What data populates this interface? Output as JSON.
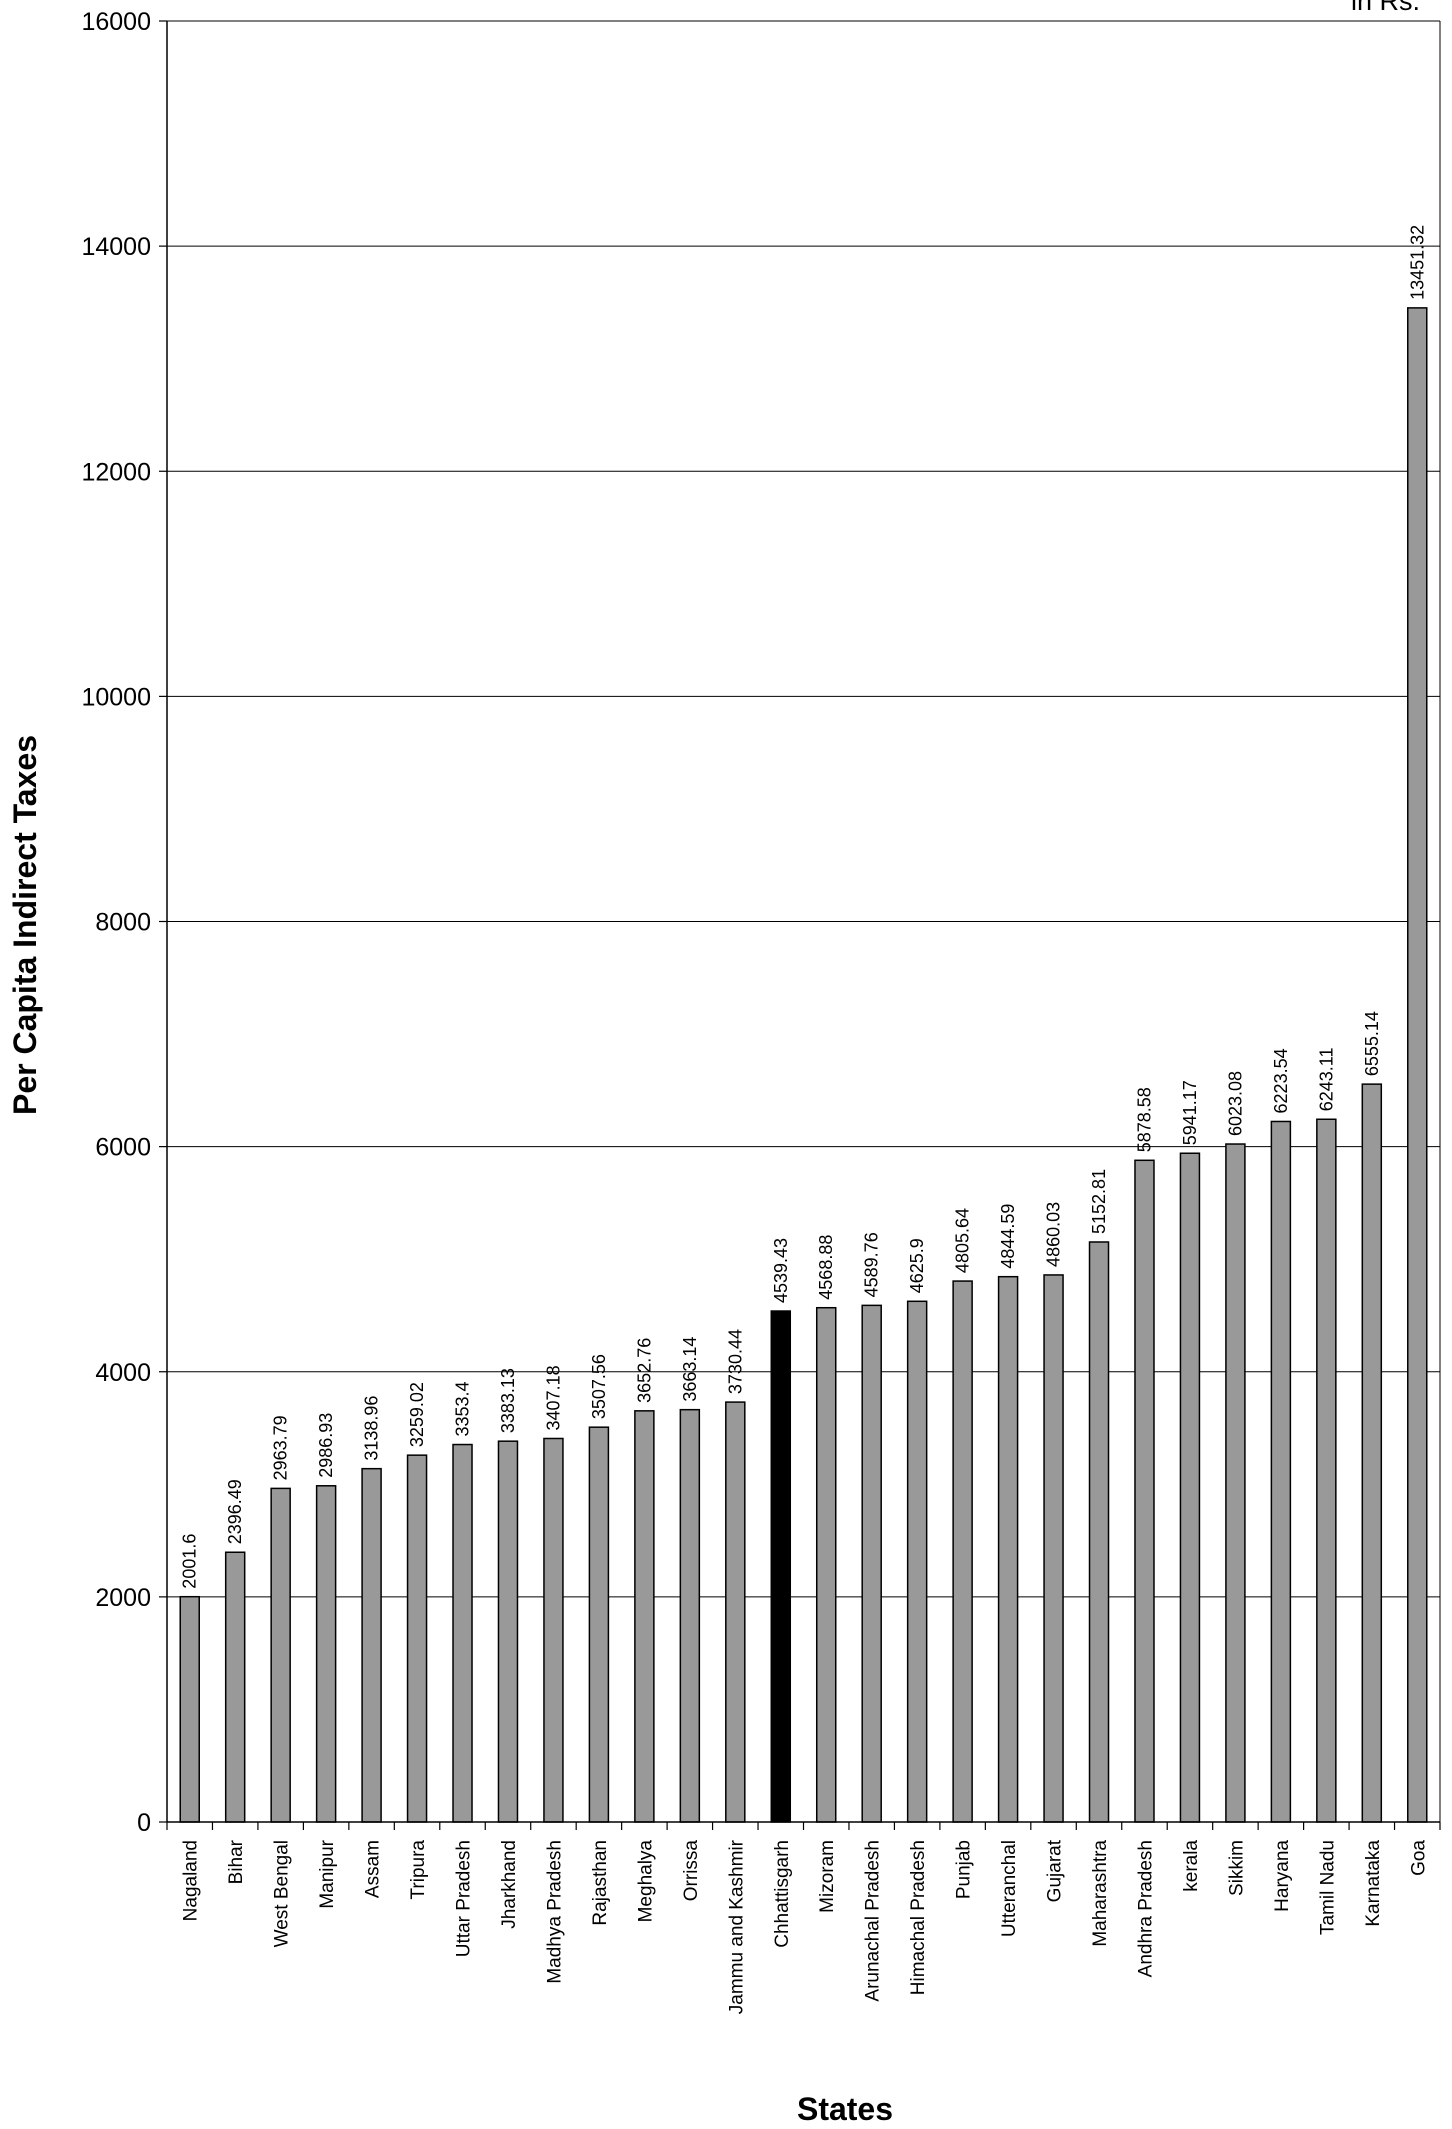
{
  "chart_data": {
    "type": "bar",
    "title": "",
    "unit_label": "in Rs.",
    "xlabel": "States",
    "ylabel": "Per Capita Indirect Taxes",
    "ylim": [
      0,
      16000
    ],
    "yticks": [
      0,
      2000,
      4000,
      6000,
      8000,
      10000,
      12000,
      14000,
      16000
    ],
    "grid": true,
    "legend": "none",
    "bar_color": "#999999",
    "highlight_color": "#000000",
    "highlight_category": "Chhattisgarh",
    "categories": [
      "Nagaland",
      "Bihar",
      "West Bengal",
      "Manipur",
      "Assam",
      "Tripura",
      "Uttar Pradesh",
      "Jharkhand",
      "Madhya Pradesh",
      "Rajasthan",
      "Meghalya",
      "Orrissa",
      "Jammu and Kashmir",
      "Chhattisgarh",
      "Mizoram",
      "Arunachal Pradesh",
      "Himachal Pradesh",
      "Punjab",
      "Utteranchal",
      "Gujarat",
      "Maharashtra",
      "Andhra Pradesh",
      "kerala",
      "Sikkim",
      "Haryana",
      "Tamil Nadu",
      "Karnataka",
      "Goa"
    ],
    "values": [
      2001.6,
      2396.49,
      2963.79,
      2986.93,
      3138.96,
      3259.02,
      3353.4,
      3383.13,
      3407.18,
      3507.56,
      3652.76,
      3663.14,
      3730.44,
      4539.43,
      4568.88,
      4589.76,
      4625.9,
      4805.64,
      4844.59,
      4860.03,
      5152.81,
      5878.58,
      5941.17,
      6023.08,
      6223.54,
      6243.11,
      6555.14,
      13451.32
    ]
  }
}
